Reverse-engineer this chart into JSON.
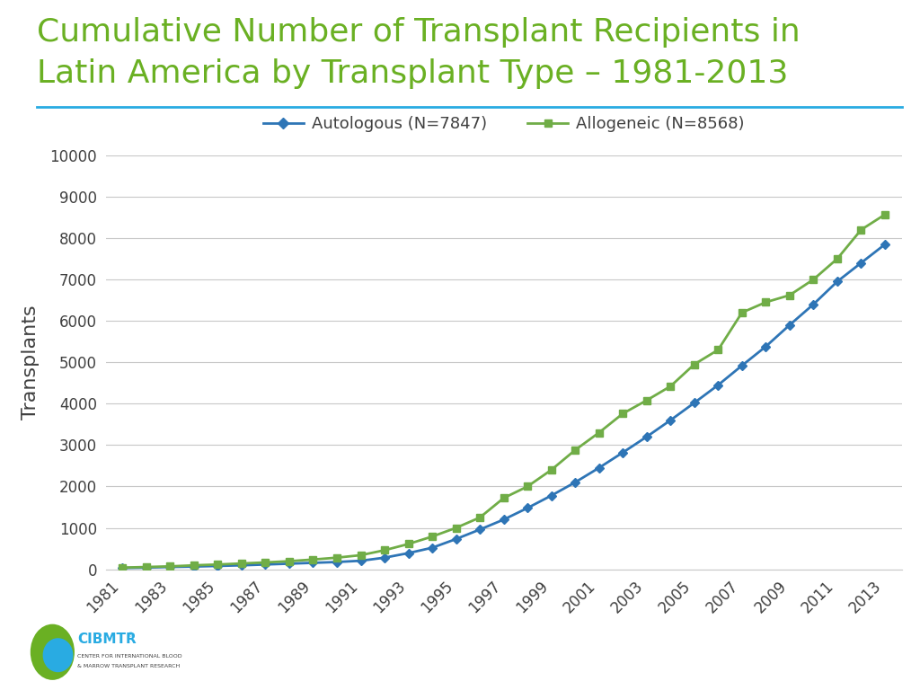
{
  "title_line1": "Cumulative Number of Transplant Recipients in",
  "title_line2": "Latin America by Transplant Type – 1981-2013",
  "title_color": "#6ab023",
  "title_fontsize": 26,
  "ylabel": "Transplants",
  "ylabel_fontsize": 16,
  "background_color": "#ffffff",
  "separator_color": "#29abe2",
  "years": [
    1981,
    1982,
    1983,
    1984,
    1985,
    1986,
    1987,
    1988,
    1989,
    1990,
    1991,
    1992,
    1993,
    1994,
    1995,
    1996,
    1997,
    1998,
    1999,
    2000,
    2001,
    2002,
    2003,
    2004,
    2005,
    2006,
    2007,
    2008,
    2009,
    2010,
    2011,
    2012,
    2013
  ],
  "xtick_labels": [
    "1981",
    "",
    "1983",
    "",
    "1985",
    "",
    "1987",
    "",
    "1989",
    "",
    "1991",
    "",
    "1993",
    "",
    "1995",
    "",
    "1997",
    "",
    "1999",
    "",
    "2001",
    "",
    "2003",
    "",
    "2005",
    "",
    "2007",
    "",
    "2009",
    "",
    "2011",
    "",
    "2013"
  ],
  "autologous": [
    30,
    40,
    55,
    65,
    80,
    95,
    115,
    135,
    155,
    175,
    205,
    280,
    390,
    520,
    730,
    960,
    1200,
    1480,
    1780,
    2100,
    2450,
    2820,
    3200,
    3600,
    4020,
    4450,
    4920,
    5380,
    5900,
    6400,
    6950,
    7400,
    7847
  ],
  "allogeneic": [
    40,
    55,
    70,
    95,
    115,
    140,
    165,
    195,
    235,
    280,
    340,
    460,
    610,
    790,
    1000,
    1250,
    1720,
    2000,
    2400,
    2880,
    3300,
    3760,
    4080,
    4420,
    4950,
    5300,
    6200,
    6450,
    6620,
    7000,
    7500,
    8200,
    8568
  ],
  "auto_color": "#2e75b6",
  "allo_color": "#70ad47",
  "auto_label": "Autologous (N=7847)",
  "allo_label": "Allogeneic (N=8568)",
  "ylim": [
    0,
    10000
  ],
  "ytick_step": 1000,
  "grid_color": "#c8c8c8",
  "tick_color": "#404040",
  "tick_fontsize": 12,
  "legend_fontsize": 13
}
